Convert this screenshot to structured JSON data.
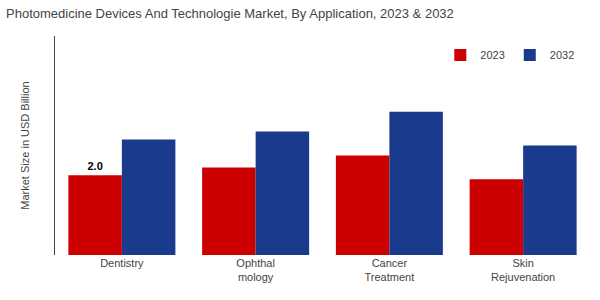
{
  "chart_data": {
    "type": "bar",
    "title": "Photomedicine Devices And Technologie Market, By Application, 2023 & 2032",
    "ylabel": "Market Size in USD Billion",
    "categories": [
      "Dentistry",
      "Ophthal\nmology",
      "Cancer\nTreatment",
      "Skin\nRejuvenation"
    ],
    "series": [
      {
        "name": "2023",
        "color": "#cc0000",
        "values": [
          2.0,
          2.2,
          2.5,
          1.9
        ]
      },
      {
        "name": "2032",
        "color": "#1a3a8c",
        "values": [
          2.9,
          3.1,
          3.6,
          2.75
        ]
      }
    ],
    "ylim": [
      0,
      5.5
    ],
    "yticks": [],
    "tick_labels": "x",
    "grid": false,
    "legend": "upper right",
    "annotations": [
      {
        "text": "2.0",
        "category": "Dentistry",
        "series": "2023"
      }
    ]
  }
}
